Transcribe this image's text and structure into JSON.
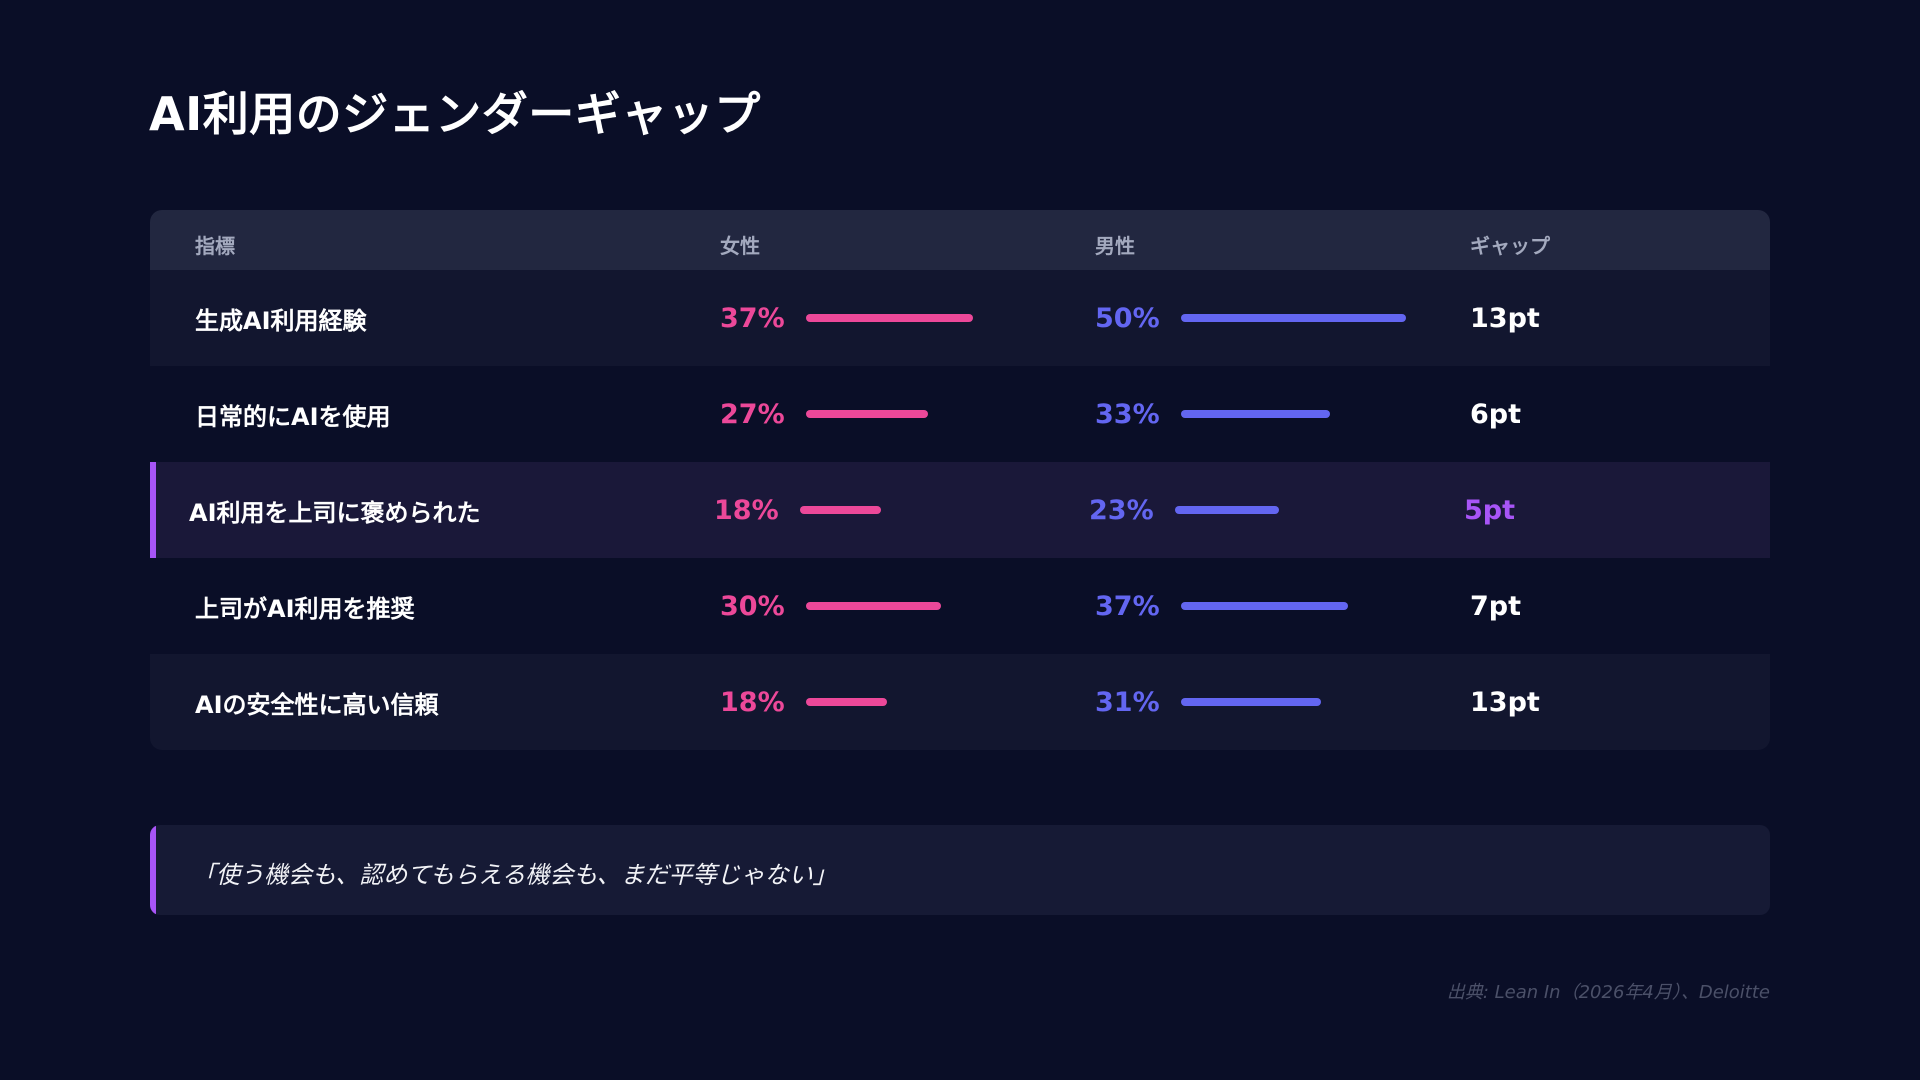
{
  "title": "AI利用のジェンダーギャップ",
  "colors": {
    "background": "#0a0e27",
    "female": "#ec4899",
    "male": "#6366f1",
    "highlight": "#a855f7"
  },
  "table": {
    "headers": {
      "metric": "指標",
      "female": "女性",
      "male": "男性",
      "gap": "ギャップ"
    },
    "rows": [
      {
        "label": "生成AI利用経験",
        "female": "37%",
        "male": "50%",
        "gap": "13pt"
      },
      {
        "label": "日常的にAIを使用",
        "female": "27%",
        "male": "33%",
        "gap": "6pt"
      },
      {
        "label": "AI利用を上司に褒められた",
        "female": "18%",
        "male": "23%",
        "gap": "5pt",
        "highlighted": true
      },
      {
        "label": "上司がAI利用を推奨",
        "female": "30%",
        "male": "37%",
        "gap": "7pt"
      },
      {
        "label": "AIの安全性に高い信頼",
        "female": "18%",
        "male": "31%",
        "gap": "13pt"
      }
    ]
  },
  "chart_data": {
    "type": "table",
    "columns": [
      "指標",
      "女性",
      "男性",
      "ギャップ"
    ],
    "categories": [
      "生成AI利用経験",
      "日常的にAIを使用",
      "AI利用を上司に褒められた",
      "上司がAI利用を推奨",
      "AIの安全性に高い信頼"
    ],
    "series": [
      {
        "name": "女性",
        "values": [
          37,
          27,
          18,
          30,
          18
        ]
      },
      {
        "name": "男性",
        "values": [
          50,
          33,
          23,
          37,
          31
        ]
      }
    ],
    "gap_pt": [
      13,
      6,
      5,
      7,
      13
    ],
    "highlighted_row": "AI利用を上司に褒められた"
  },
  "quote": "「使う機会も、認めてもらえる機会も、まだ平等じゃない」",
  "source": "出典: Lean In（2026年4月）、Deloitte"
}
